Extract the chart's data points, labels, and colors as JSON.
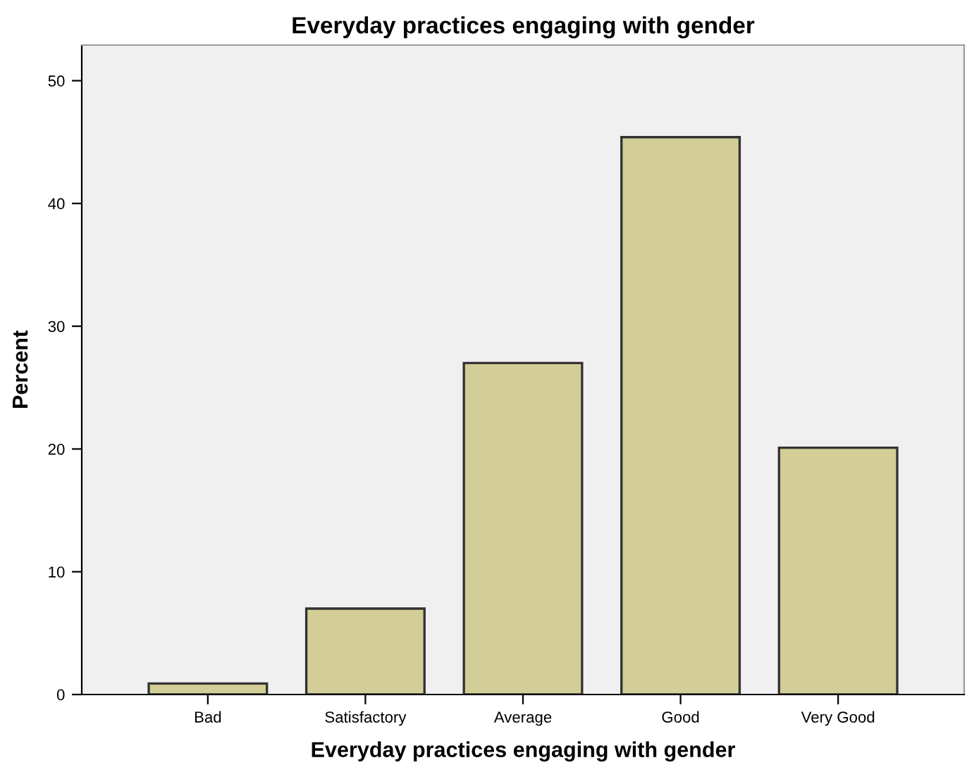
{
  "chart_data": {
    "type": "bar",
    "title": "Everyday practices engaging with gender",
    "xlabel": "Everyday practices engaging with gender",
    "ylabel": "Percent",
    "categories": [
      "Bad",
      "Satisfactory",
      "Average",
      "Good",
      "Very Good"
    ],
    "values": [
      0.9,
      7.0,
      27.0,
      45.4,
      20.1
    ],
    "color": "#d3ce97",
    "ylim": [
      0,
      52.9
    ],
    "yticks": [
      0,
      10,
      20,
      30,
      40,
      50
    ],
    "grid": false
  }
}
